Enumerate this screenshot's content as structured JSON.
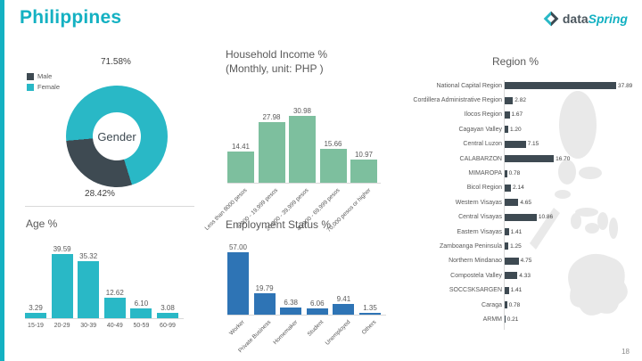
{
  "page": {
    "title": "Philippines",
    "page_number": "18"
  },
  "logo": {
    "data_text": "data",
    "spring_text": "Spring"
  },
  "colors": {
    "accent_teal": "#14b1c2",
    "male_dark": "#3e4a52",
    "female_teal": "#29b8c6",
    "income_green": "#7dbf9e",
    "age_teal": "#29b8c6",
    "employment_blue": "#2e74b5",
    "region_dark": "#3e4a52",
    "map_gray": "#e9e9e9"
  },
  "chart_data": [
    {
      "id": "gender",
      "type": "pie",
      "title": "Gender",
      "legend": [
        "Male",
        "Female"
      ],
      "labels": [
        "Female",
        "Male"
      ],
      "values": [
        71.58,
        28.42
      ],
      "unit": "%"
    },
    {
      "id": "income",
      "type": "bar",
      "title": "Household Income %",
      "subtitle": "(Monthly, unit: PHP )",
      "categories": [
        "Less than 8000 pesos",
        "8,000 - 19,999 pesos",
        "20,000 - 39,999 pesos",
        "40,000 - 69,999 pesos",
        "70,000 pesos or higher"
      ],
      "values": [
        14.41,
        27.98,
        30.98,
        15.66,
        10.97
      ]
    },
    {
      "id": "age",
      "type": "bar",
      "title": "Age %",
      "categories": [
        "15-19",
        "20-29",
        "30-39",
        "40-49",
        "50-59",
        "60-99"
      ],
      "values": [
        3.29,
        39.59,
        35.32,
        12.62,
        6.1,
        3.08
      ]
    },
    {
      "id": "employment",
      "type": "bar",
      "title": "Employment Status %",
      "categories": [
        "Worker",
        "Private Business",
        "Homemaker",
        "Student",
        "Unemployed",
        "Others"
      ],
      "values": [
        57.0,
        19.79,
        6.38,
        6.06,
        9.41,
        1.35
      ]
    },
    {
      "id": "region",
      "type": "bar",
      "orientation": "horizontal",
      "title": "Region %",
      "categories": [
        "National Capital Region",
        "Cordillera Administrative Region",
        "Ilocos Region",
        "Cagayan Valley",
        "Central Luzon",
        "CALABARZON",
        "MIMAROPA",
        "Bicol Region",
        "Western Visayas",
        "Central Visayas",
        "Eastern Visayas",
        "Zamboanga Peninsula",
        "Northern Mindanao",
        "Compostela Valley",
        "SOCCSKSARGEN",
        "Caraga",
        "ARMM"
      ],
      "values": [
        37.89,
        2.82,
        1.67,
        1.2,
        7.15,
        16.7,
        0.78,
        2.14,
        4.65,
        10.86,
        1.41,
        1.25,
        4.75,
        4.33,
        1.41,
        0.78,
        0.21
      ]
    }
  ]
}
